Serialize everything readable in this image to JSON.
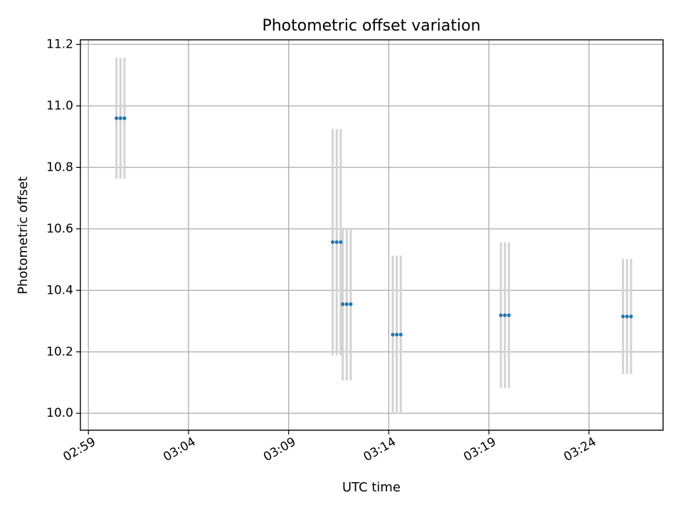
{
  "chart_data": {
    "type": "scatter",
    "title": "Photometric offset variation",
    "xlabel": "UTC time",
    "ylabel": "Photometric offset",
    "x_tick_labels": [
      "02:59",
      "03:04",
      "03:09",
      "03:14",
      "03:19",
      "03:24"
    ],
    "x_tick_values": [
      "02:59",
      "03:04",
      "03:09",
      "03:14",
      "03:19",
      "03:24"
    ],
    "y_tick_labels": [
      "10.0",
      "10.2",
      "10.4",
      "10.6",
      "10.8",
      "11.0",
      "11.2"
    ],
    "y_tick_values": [
      10.0,
      10.2,
      10.4,
      10.6,
      10.8,
      11.0,
      11.2
    ],
    "xlim": [
      "02:58.6",
      "03:27.7"
    ],
    "ylim": [
      9.945,
      11.215
    ],
    "grid": true,
    "x_tick_rotation_deg": 30,
    "colors": {
      "points": "#1f77b4",
      "errorbars": "#d3d3d3",
      "grid": "#b0b0b0"
    },
    "series": [
      {
        "points": [
          {
            "x": "03:00.4",
            "y": 10.96,
            "yerr": 0.197
          },
          {
            "x": "03:00.6",
            "y": 10.96,
            "yerr": 0.197
          },
          {
            "x": "03:00.8",
            "y": 10.96,
            "yerr": 0.197
          },
          {
            "x": "03:11.2",
            "y": 10.557,
            "yerr": 0.368
          },
          {
            "x": "03:11.4",
            "y": 10.557,
            "yerr": 0.368
          },
          {
            "x": "03:11.6",
            "y": 10.557,
            "yerr": 0.368
          },
          {
            "x": "03:11.7",
            "y": 10.355,
            "yerr": 0.248
          },
          {
            "x": "03:11.9",
            "y": 10.355,
            "yerr": 0.248
          },
          {
            "x": "03:12.1",
            "y": 10.355,
            "yerr": 0.248
          },
          {
            "x": "03:14.2",
            "y": 10.256,
            "yerr": 0.257
          },
          {
            "x": "03:14.4",
            "y": 10.256,
            "yerr": 0.257
          },
          {
            "x": "03:14.6",
            "y": 10.256,
            "yerr": 0.257
          },
          {
            "x": "03:19.6",
            "y": 10.319,
            "yerr": 0.237
          },
          {
            "x": "03:19.8",
            "y": 10.319,
            "yerr": 0.237
          },
          {
            "x": "03:20.0",
            "y": 10.319,
            "yerr": 0.237
          },
          {
            "x": "03:25.7",
            "y": 10.315,
            "yerr": 0.187
          },
          {
            "x": "03:25.9",
            "y": 10.315,
            "yerr": 0.187
          },
          {
            "x": "03:26.1",
            "y": 10.315,
            "yerr": 0.187
          }
        ]
      }
    ]
  }
}
